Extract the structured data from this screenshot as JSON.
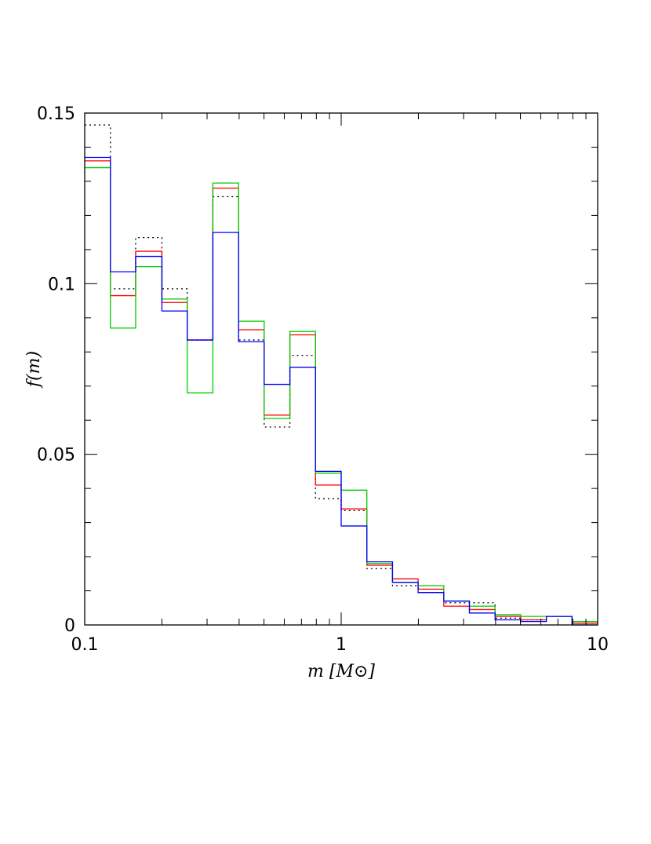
{
  "chart_data": {
    "type": "histogram-step",
    "xscale": "log",
    "xlim": [
      0.1,
      10
    ],
    "ylim": [
      0,
      0.15
    ],
    "xlabel": "m [M⊙]",
    "ylabel": "f(m)",
    "x_ticks": [
      {
        "value": 0.1,
        "label": "0.1"
      },
      {
        "value": 1,
        "label": "1"
      },
      {
        "value": 10,
        "label": "10"
      }
    ],
    "y_ticks": [
      {
        "value": 0,
        "label": "0"
      },
      {
        "value": 0.05,
        "label": "0.05"
      },
      {
        "value": 0.1,
        "label": "0.1"
      },
      {
        "value": 0.15,
        "label": "0.15"
      }
    ],
    "bin_edges": [
      0.1,
      0.126,
      0.158,
      0.2,
      0.251,
      0.316,
      0.398,
      0.501,
      0.631,
      0.794,
      1.0,
      1.259,
      1.585,
      1.995,
      2.512,
      3.162,
      3.981,
      5.012,
      6.31,
      7.943,
      10.0
    ],
    "series": [
      {
        "name": "black-dotted",
        "color": "#000000",
        "dashed": true,
        "values": [
          0.1465,
          0.0985,
          0.1135,
          0.0985,
          0.0835,
          0.1255,
          0.0835,
          0.058,
          0.079,
          0.037,
          0.0335,
          0.0165,
          0.0115,
          0.0095,
          0.0065,
          0.0065,
          0.002,
          0.0015,
          0.0025,
          0.0005
        ]
      },
      {
        "name": "red",
        "color": "#ff0000",
        "dashed": false,
        "values": [
          0.136,
          0.0965,
          0.1095,
          0.0945,
          0.0835,
          0.128,
          0.0865,
          0.0615,
          0.085,
          0.041,
          0.034,
          0.0175,
          0.0135,
          0.0105,
          0.0055,
          0.0045,
          0.0025,
          0.0015,
          0.0025,
          0.0005
        ]
      },
      {
        "name": "green",
        "color": "#00cc00",
        "dashed": false,
        "values": [
          0.134,
          0.087,
          0.105,
          0.0955,
          0.068,
          0.1295,
          0.089,
          0.0605,
          0.086,
          0.0445,
          0.0395,
          0.018,
          0.0125,
          0.0115,
          0.007,
          0.0055,
          0.003,
          0.0025,
          0.0025,
          0.001
        ]
      },
      {
        "name": "blue",
        "color": "#0000ff",
        "dashed": false,
        "values": [
          0.137,
          0.1035,
          0.108,
          0.092,
          0.0835,
          0.115,
          0.083,
          0.0705,
          0.0755,
          0.045,
          0.029,
          0.0185,
          0.0125,
          0.0095,
          0.007,
          0.0035,
          0.0015,
          0.001,
          0.0025,
          0.0
        ]
      }
    ]
  }
}
